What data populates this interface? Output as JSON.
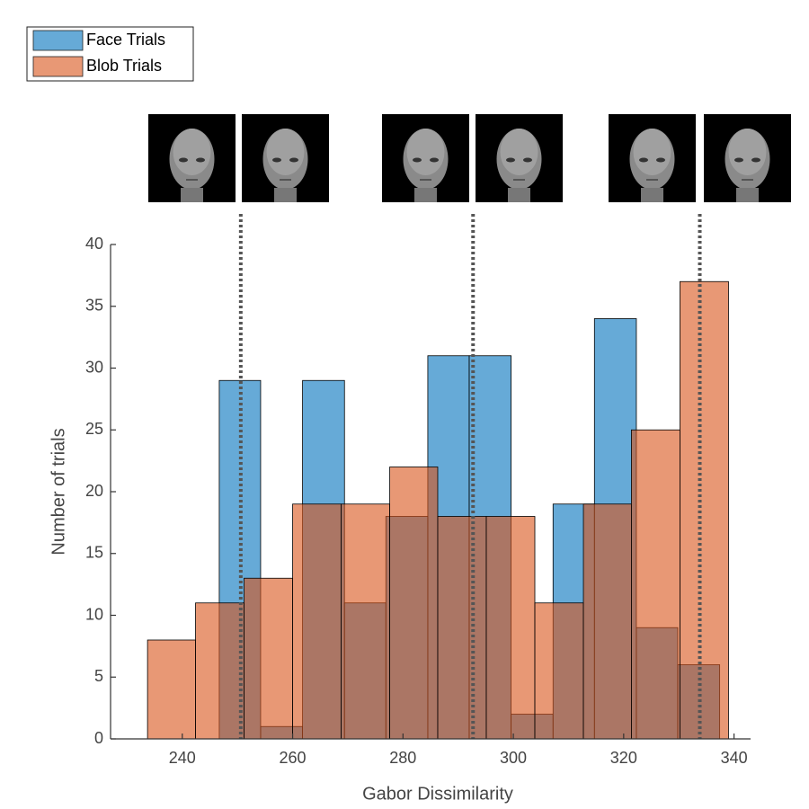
{
  "chart_data": {
    "type": "histogram",
    "xlabel": "Gabor Dissimilarity",
    "ylabel": "Number of trials",
    "series": [
      {
        "name": "Face Trials",
        "color": "#0072bd",
        "bins": [
          246.7,
          254.2,
          261.8,
          269.4,
          276.9,
          284.5,
          292.0,
          299.6,
          307.2,
          314.7,
          322.3,
          329.8,
          337.4
        ],
        "values": [
          29,
          1,
          29,
          11,
          18,
          31,
          31,
          2,
          19,
          34,
          9,
          6
        ]
      },
      {
        "name": "Blob Trials",
        "color": "#d95319",
        "bins": [
          233.7,
          242.4,
          251.2,
          260.0,
          268.8,
          277.6,
          286.3,
          295.1,
          303.9,
          312.7,
          321.4,
          330.2,
          339.0
        ],
        "values": [
          8,
          11,
          13,
          19,
          19,
          22,
          18,
          18,
          11,
          19,
          25,
          37
        ]
      }
    ],
    "vlines": [
      250.6,
      292.7,
      333.8
    ],
    "xlim": [
      227,
      343
    ],
    "xticks": [
      240,
      260,
      280,
      300,
      320,
      340
    ],
    "ylim": [
      0,
      40
    ],
    "yticks": [
      0,
      5,
      10,
      15,
      20,
      25,
      30,
      35,
      40
    ],
    "legend": "top-left"
  }
}
